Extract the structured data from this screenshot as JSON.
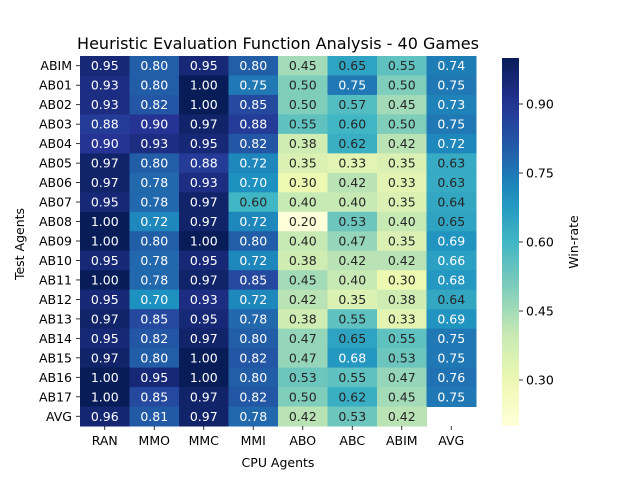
{
  "chart_data": {
    "type": "heatmap",
    "title": "Heuristic Evaluation Function Analysis - 40 Games",
    "xlabel": "CPU Agents",
    "ylabel": "Test Agents",
    "colorbar_label": "Win-rate",
    "colormap": "YlGnBu",
    "vmin": 0.2,
    "vmax": 1.0,
    "colorbar_ticks": [
      "0.30",
      "0.45",
      "0.60",
      "0.75",
      "0.90"
    ],
    "colorbar_tick_values": [
      0.3,
      0.45,
      0.6,
      0.75,
      0.9
    ],
    "columns": [
      "RAN",
      "MMO",
      "MMC",
      "MMI",
      "ABO",
      "ABC",
      "ABIM",
      "AVG"
    ],
    "rows": [
      "ABIM",
      "AB01",
      "AB02",
      "AB03",
      "AB04",
      "AB05",
      "AB06",
      "AB07",
      "AB08",
      "AB09",
      "AB10",
      "AB11",
      "AB12",
      "AB13",
      "AB14",
      "AB15",
      "AB16",
      "AB17",
      "AVG"
    ],
    "values": [
      [
        0.95,
        0.8,
        0.95,
        0.8,
        0.45,
        0.65,
        0.55,
        0.74
      ],
      [
        0.93,
        0.8,
        1.0,
        0.75,
        0.5,
        0.75,
        0.5,
        0.75
      ],
      [
        0.93,
        0.82,
        1.0,
        0.85,
        0.5,
        0.57,
        0.45,
        0.73
      ],
      [
        0.88,
        0.9,
        0.97,
        0.88,
        0.55,
        0.6,
        0.5,
        0.75
      ],
      [
        0.9,
        0.93,
        0.95,
        0.82,
        0.38,
        0.62,
        0.42,
        0.72
      ],
      [
        0.97,
        0.8,
        0.88,
        0.72,
        0.35,
        0.33,
        0.35,
        0.63
      ],
      [
        0.97,
        0.78,
        0.93,
        0.7,
        0.3,
        0.42,
        0.33,
        0.63
      ],
      [
        0.95,
        0.78,
        0.97,
        0.6,
        0.4,
        0.4,
        0.35,
        0.64
      ],
      [
        1.0,
        0.72,
        0.97,
        0.72,
        0.2,
        0.53,
        0.4,
        0.65
      ],
      [
        1.0,
        0.8,
        1.0,
        0.8,
        0.4,
        0.47,
        0.35,
        0.69
      ],
      [
        0.95,
        0.78,
        0.95,
        0.72,
        0.38,
        0.42,
        0.42,
        0.66
      ],
      [
        1.0,
        0.78,
        0.97,
        0.85,
        0.45,
        0.4,
        0.3,
        0.68
      ],
      [
        0.95,
        0.7,
        0.93,
        0.72,
        0.42,
        0.35,
        0.38,
        0.64
      ],
      [
        0.97,
        0.85,
        0.95,
        0.78,
        0.38,
        0.55,
        0.33,
        0.69
      ],
      [
        0.95,
        0.82,
        0.97,
        0.8,
        0.47,
        0.65,
        0.55,
        0.75
      ],
      [
        0.97,
        0.8,
        1.0,
        0.82,
        0.47,
        0.68,
        0.53,
        0.75
      ],
      [
        1.0,
        0.95,
        1.0,
        0.8,
        0.53,
        0.55,
        0.47,
        0.76
      ],
      [
        1.0,
        0.85,
        0.97,
        0.82,
        0.5,
        0.62,
        0.45,
        0.75
      ],
      [
        0.96,
        0.81,
        0.97,
        0.78,
        0.42,
        0.53,
        0.42,
        null
      ]
    ]
  }
}
